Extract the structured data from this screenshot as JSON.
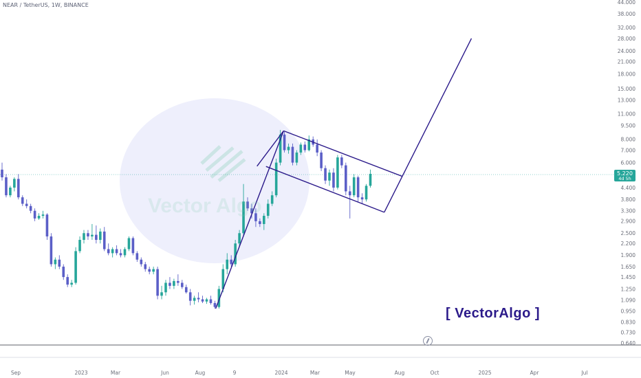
{
  "symbol": "NEAR / TetherUS, 1W, BINANCE",
  "brand_label": "[ VectorAlgo ]",
  "watermark": "Vector Algo",
  "current_price": "5.220",
  "countdown": "4d 5h",
  "colors": {
    "up": "#26a69a",
    "down": "#5b5fc7",
    "trendline": "#2b1a8a",
    "price_line": "#26a69a",
    "axis_text": "#6a6d78"
  },
  "chart_data": {
    "type": "candlestick",
    "y_scale": "log",
    "ylim": [
      0.6,
      46.0
    ],
    "y_ticks": [
      "44.000",
      "38.000",
      "32.000",
      "28.000",
      "24.000",
      "21.000",
      "18.000",
      "15.000",
      "13.000",
      "11.000",
      "9.500",
      "8.000",
      "7.000",
      "6.000",
      "4.400",
      "3.800",
      "3.300",
      "2.900",
      "2.500",
      "2.200",
      "1.900",
      "1.650",
      "1.450",
      "1.250",
      "1.090",
      "0.950",
      "0.830",
      "0.730",
      "0.640"
    ],
    "x_ticks": [
      "Sep",
      "2023",
      "Mar",
      "Jun",
      "Aug",
      "9",
      "2024",
      "Mar",
      "May",
      "Aug",
      "Oct",
      "2025",
      "Apr",
      "Jul"
    ],
    "candles": [
      {
        "o": 5.5,
        "h": 6.0,
        "l": 4.8,
        "c": 5.0
      },
      {
        "o": 5.0,
        "h": 5.2,
        "l": 3.9,
        "c": 4.0
      },
      {
        "o": 4.0,
        "h": 4.5,
        "l": 3.9,
        "c": 4.4
      },
      {
        "o": 4.4,
        "h": 5.0,
        "l": 4.2,
        "c": 4.9
      },
      {
        "o": 4.9,
        "h": 5.2,
        "l": 3.8,
        "c": 3.9
      },
      {
        "o": 3.9,
        "h": 4.0,
        "l": 3.5,
        "c": 3.6
      },
      {
        "o": 3.6,
        "h": 3.8,
        "l": 3.4,
        "c": 3.5
      },
      {
        "o": 3.5,
        "h": 3.6,
        "l": 3.2,
        "c": 3.3
      },
      {
        "o": 3.3,
        "h": 3.4,
        "l": 2.9,
        "c": 3.0
      },
      {
        "o": 3.0,
        "h": 3.2,
        "l": 2.95,
        "c": 3.1
      },
      {
        "o": 3.1,
        "h": 3.3,
        "l": 3.0,
        "c": 3.15
      },
      {
        "o": 3.15,
        "h": 3.2,
        "l": 2.3,
        "c": 2.4
      },
      {
        "o": 2.4,
        "h": 2.5,
        "l": 1.65,
        "c": 1.7
      },
      {
        "o": 1.7,
        "h": 1.85,
        "l": 1.6,
        "c": 1.8
      },
      {
        "o": 1.8,
        "h": 1.9,
        "l": 1.6,
        "c": 1.65
      },
      {
        "o": 1.65,
        "h": 1.7,
        "l": 1.4,
        "c": 1.45
      },
      {
        "o": 1.45,
        "h": 1.5,
        "l": 1.28,
        "c": 1.32
      },
      {
        "o": 1.32,
        "h": 1.4,
        "l": 1.28,
        "c": 1.35
      },
      {
        "o": 1.35,
        "h": 2.1,
        "l": 1.32,
        "c": 2.0
      },
      {
        "o": 2.0,
        "h": 2.4,
        "l": 1.95,
        "c": 2.3
      },
      {
        "o": 2.3,
        "h": 2.6,
        "l": 2.2,
        "c": 2.5
      },
      {
        "o": 2.5,
        "h": 2.6,
        "l": 2.3,
        "c": 2.4
      },
      {
        "o": 2.4,
        "h": 2.8,
        "l": 2.3,
        "c": 2.45
      },
      {
        "o": 2.45,
        "h": 2.75,
        "l": 2.2,
        "c": 2.3
      },
      {
        "o": 2.3,
        "h": 2.65,
        "l": 2.2,
        "c": 2.55
      },
      {
        "o": 2.55,
        "h": 2.7,
        "l": 2.0,
        "c": 2.05
      },
      {
        "o": 2.05,
        "h": 2.2,
        "l": 1.9,
        "c": 1.95
      },
      {
        "o": 1.95,
        "h": 2.1,
        "l": 1.85,
        "c": 2.05
      },
      {
        "o": 2.05,
        "h": 2.15,
        "l": 1.9,
        "c": 1.95
      },
      {
        "o": 1.95,
        "h": 2.05,
        "l": 1.85,
        "c": 1.9
      },
      {
        "o": 1.9,
        "h": 2.1,
        "l": 1.85,
        "c": 2.05
      },
      {
        "o": 2.05,
        "h": 2.4,
        "l": 2.0,
        "c": 2.35
      },
      {
        "o": 2.35,
        "h": 2.4,
        "l": 1.9,
        "c": 1.95
      },
      {
        "o": 1.95,
        "h": 2.0,
        "l": 1.75,
        "c": 1.8
      },
      {
        "o": 1.8,
        "h": 1.85,
        "l": 1.65,
        "c": 1.7
      },
      {
        "o": 1.7,
        "h": 1.75,
        "l": 1.55,
        "c": 1.6
      },
      {
        "o": 1.6,
        "h": 1.65,
        "l": 1.5,
        "c": 1.55
      },
      {
        "o": 1.55,
        "h": 1.65,
        "l": 1.5,
        "c": 1.6
      },
      {
        "o": 1.6,
        "h": 1.65,
        "l": 1.1,
        "c": 1.15
      },
      {
        "o": 1.15,
        "h": 1.3,
        "l": 1.1,
        "c": 1.2
      },
      {
        "o": 1.2,
        "h": 1.4,
        "l": 1.15,
        "c": 1.35
      },
      {
        "o": 1.35,
        "h": 1.45,
        "l": 1.25,
        "c": 1.3
      },
      {
        "o": 1.3,
        "h": 1.42,
        "l": 1.25,
        "c": 1.38
      },
      {
        "o": 1.38,
        "h": 1.5,
        "l": 1.3,
        "c": 1.35
      },
      {
        "o": 1.35,
        "h": 1.4,
        "l": 1.25,
        "c": 1.28
      },
      {
        "o": 1.28,
        "h": 1.32,
        "l": 1.18,
        "c": 1.2
      },
      {
        "o": 1.2,
        "h": 1.25,
        "l": 1.02,
        "c": 1.08
      },
      {
        "o": 1.08,
        "h": 1.15,
        "l": 1.03,
        "c": 1.12
      },
      {
        "o": 1.12,
        "h": 1.2,
        "l": 1.06,
        "c": 1.1
      },
      {
        "o": 1.1,
        "h": 1.15,
        "l": 1.05,
        "c": 1.07
      },
      {
        "o": 1.07,
        "h": 1.12,
        "l": 1.04,
        "c": 1.1
      },
      {
        "o": 1.1,
        "h": 1.15,
        "l": 1.03,
        "c": 1.05
      },
      {
        "o": 1.05,
        "h": 1.08,
        "l": 0.98,
        "c": 1.0
      },
      {
        "o": 1.0,
        "h": 1.3,
        "l": 0.98,
        "c": 1.25
      },
      {
        "o": 1.25,
        "h": 1.7,
        "l": 1.2,
        "c": 1.6
      },
      {
        "o": 1.6,
        "h": 1.95,
        "l": 1.5,
        "c": 1.8
      },
      {
        "o": 1.8,
        "h": 1.9,
        "l": 1.65,
        "c": 1.7
      },
      {
        "o": 1.7,
        "h": 2.3,
        "l": 1.65,
        "c": 2.2
      },
      {
        "o": 2.2,
        "h": 2.6,
        "l": 2.1,
        "c": 2.5
      },
      {
        "o": 2.5,
        "h": 4.6,
        "l": 2.4,
        "c": 3.7
      },
      {
        "o": 3.7,
        "h": 3.9,
        "l": 3.3,
        "c": 3.4
      },
      {
        "o": 3.4,
        "h": 3.6,
        "l": 3.0,
        "c": 3.2
      },
      {
        "o": 3.2,
        "h": 3.4,
        "l": 2.7,
        "c": 2.9
      },
      {
        "o": 2.9,
        "h": 3.0,
        "l": 2.7,
        "c": 2.8
      },
      {
        "o": 2.8,
        "h": 3.2,
        "l": 2.6,
        "c": 3.1
      },
      {
        "o": 3.1,
        "h": 3.8,
        "l": 3.0,
        "c": 3.6
      },
      {
        "o": 3.6,
        "h": 4.2,
        "l": 3.5,
        "c": 4.0
      },
      {
        "o": 4.0,
        "h": 6.3,
        "l": 3.9,
        "c": 6.0
      },
      {
        "o": 6.0,
        "h": 9.0,
        "l": 5.8,
        "c": 8.5
      },
      {
        "o": 8.5,
        "h": 8.8,
        "l": 6.8,
        "c": 7.0
      },
      {
        "o": 7.0,
        "h": 7.6,
        "l": 6.7,
        "c": 7.3
      },
      {
        "o": 7.3,
        "h": 7.6,
        "l": 5.8,
        "c": 6.0
      },
      {
        "o": 6.0,
        "h": 7.0,
        "l": 5.8,
        "c": 6.8
      },
      {
        "o": 6.8,
        "h": 7.7,
        "l": 6.6,
        "c": 7.5
      },
      {
        "o": 7.5,
        "h": 7.8,
        "l": 6.8,
        "c": 7.0
      },
      {
        "o": 7.0,
        "h": 8.4,
        "l": 6.9,
        "c": 8.0
      },
      {
        "o": 8.0,
        "h": 8.3,
        "l": 7.3,
        "c": 7.5
      },
      {
        "o": 7.5,
        "h": 8.0,
        "l": 6.5,
        "c": 6.8
      },
      {
        "o": 6.8,
        "h": 7.0,
        "l": 5.4,
        "c": 5.6
      },
      {
        "o": 5.6,
        "h": 5.8,
        "l": 4.6,
        "c": 4.8
      },
      {
        "o": 4.8,
        "h": 5.5,
        "l": 4.5,
        "c": 5.3
      },
      {
        "o": 5.3,
        "h": 5.6,
        "l": 4.2,
        "c": 4.4
      },
      {
        "o": 4.4,
        "h": 6.6,
        "l": 4.3,
        "c": 6.4
      },
      {
        "o": 6.4,
        "h": 6.6,
        "l": 5.6,
        "c": 5.8
      },
      {
        "o": 5.8,
        "h": 6.0,
        "l": 4.0,
        "c": 4.2
      },
      {
        "o": 4.2,
        "h": 4.5,
        "l": 3.0,
        "c": 4.0
      },
      {
        "o": 4.0,
        "h": 5.2,
        "l": 3.9,
        "c": 5.0
      },
      {
        "o": 5.0,
        "h": 5.1,
        "l": 3.7,
        "c": 3.9
      },
      {
        "o": 3.9,
        "h": 4.1,
        "l": 3.6,
        "c": 3.8
      },
      {
        "o": 3.8,
        "h": 4.6,
        "l": 3.7,
        "c": 4.5
      },
      {
        "o": 4.5,
        "h": 5.5,
        "l": 4.4,
        "c": 5.22
      }
    ],
    "trendlines": [
      {
        "name": "rally-trend",
        "from": {
          "i": 52.2,
          "v": 0.98
        },
        "to": {
          "i": 68.8,
          "v": 8.9
        }
      },
      {
        "name": "rally-base",
        "from": {
          "i": 62.3,
          "v": 5.74
        },
        "to": {
          "i": 68.8,
          "v": 8.9
        }
      },
      {
        "name": "flag-upper",
        "from": {
          "i": 68.8,
          "v": 8.9
        },
        "to": {
          "i": 97.8,
          "v": 5.06
        }
      },
      {
        "name": "flag-lower",
        "from": {
          "i": 64.5,
          "v": 5.72
        },
        "to": {
          "i": 93.4,
          "v": 3.24
        }
      },
      {
        "name": "flag-right",
        "from": {
          "i": 93.4,
          "v": 3.24
        },
        "to": {
          "i": 97.8,
          "v": 5.06
        }
      },
      {
        "name": "projection",
        "from": {
          "i": 97.8,
          "v": 5.06
        },
        "to": {
          "i": 114.7,
          "v": 28.0
        }
      }
    ]
  }
}
